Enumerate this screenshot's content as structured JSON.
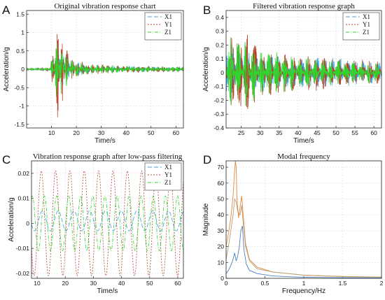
{
  "chart_data": [
    {
      "panel_label": "A",
      "type": "line",
      "title": "Original vibration response chart",
      "xlabel": "Time/s",
      "ylabel": "Acceleration/g",
      "xlim": [
        0,
        63
      ],
      "ylim": [
        -1.6,
        1.6
      ],
      "xticks": [
        10,
        20,
        30,
        40,
        50,
        60
      ],
      "yticks": [
        -1.5,
        -1,
        -0.5,
        0,
        0.5,
        1,
        1.5
      ],
      "ytick_labels": [
        "-1.5",
        "-1",
        "-0.5",
        "0",
        "0.5",
        "1",
        "1.5"
      ],
      "grid": true,
      "legend_position": "top-right",
      "series": [
        {
          "name": "X1",
          "color": "#3aa0dd",
          "dash": "6,3",
          "peak_envelope": [
            [
              0,
              0.03
            ],
            [
              9,
              0.05
            ],
            [
              11,
              0.35
            ],
            [
              12.5,
              0.7
            ],
            [
              14,
              0.5
            ],
            [
              17,
              0.25
            ],
            [
              25,
              0.12
            ],
            [
              40,
              0.08
            ],
            [
              63,
              0.06
            ]
          ]
        },
        {
          "name": "Y1",
          "color": "#b5442a",
          "dash": "2,2",
          "peak_envelope": [
            [
              0,
              0.03
            ],
            [
              9,
              0.05
            ],
            [
              11,
              0.6
            ],
            [
              12.5,
              1.5
            ],
            [
              14,
              1.2
            ],
            [
              17,
              0.35
            ],
            [
              25,
              0.15
            ],
            [
              40,
              0.1
            ],
            [
              63,
              0.07
            ]
          ]
        },
        {
          "name": "Z1",
          "color": "#2fd62f",
          "dash": "5,2,1,2",
          "peak_envelope": [
            [
              0,
              0.03
            ],
            [
              9,
              0.05
            ],
            [
              11,
              0.5
            ],
            [
              12.5,
              1.0
            ],
            [
              14,
              0.8
            ],
            [
              17,
              0.3
            ],
            [
              25,
              0.14
            ],
            [
              40,
              0.09
            ],
            [
              63,
              0.07
            ]
          ]
        }
      ]
    },
    {
      "panel_label": "B",
      "type": "line",
      "title": "Filtered vibration response graph",
      "xlabel": "Time/s",
      "ylabel": "Acceleration/g",
      "xlim": [
        21,
        62
      ],
      "ylim": [
        -0.4,
        0.45
      ],
      "xticks": [
        25,
        30,
        35,
        40,
        45,
        50,
        55,
        60
      ],
      "yticks": [
        -0.4,
        -0.3,
        -0.2,
        -0.1,
        0,
        0.1,
        0.2,
        0.3,
        0.4
      ],
      "ytick_labels": [
        "-0.4",
        "-0.3",
        "-0.2",
        "-0.1",
        "0",
        "0.1",
        "0.2",
        "0.3",
        "0.4"
      ],
      "grid": true,
      "legend_position": "top-right",
      "series": [
        {
          "name": "X1",
          "color": "#3aa0dd",
          "dash": "6,3",
          "peak_envelope": [
            [
              21,
              0.2
            ],
            [
              25,
              0.18
            ],
            [
              30,
              0.14
            ],
            [
              40,
              0.12
            ],
            [
              50,
              0.11
            ],
            [
              62,
              0.08
            ]
          ]
        },
        {
          "name": "Y1",
          "color": "#b5442a",
          "dash": "2,2",
          "peak_envelope": [
            [
              21,
              0.25
            ],
            [
              24,
              0.35
            ],
            [
              26,
              0.32
            ],
            [
              30,
              0.2
            ],
            [
              40,
              0.14
            ],
            [
              50,
              0.12
            ],
            [
              62,
              0.08
            ]
          ]
        },
        {
          "name": "Z1",
          "color": "#2fd62f",
          "dash": "5,2,1,2",
          "peak_envelope": [
            [
              21,
              0.28
            ],
            [
              23,
              0.3
            ],
            [
              26,
              0.25
            ],
            [
              30,
              0.18
            ],
            [
              40,
              0.12
            ],
            [
              50,
              0.1
            ],
            [
              62,
              0.07
            ]
          ]
        }
      ]
    },
    {
      "panel_label": "C",
      "type": "line",
      "title": "Vibration response graph after low-pass filtering",
      "xlabel": "Time/s",
      "ylabel": "Acceleration/g",
      "xlim": [
        8,
        62
      ],
      "ylim": [
        -0.022,
        0.025
      ],
      "xticks": [
        10,
        20,
        30,
        40,
        50,
        60
      ],
      "yticks": [
        -0.02,
        -0.01,
        0,
        0.01,
        0.02
      ],
      "ytick_labels": [
        "-0.02",
        "-0.01",
        "0",
        "0.01",
        "0.02"
      ],
      "grid": true,
      "legend_position": "top-right",
      "series": [
        {
          "name": "X1",
          "color": "#3aa0dd",
          "dash": "6,3",
          "amplitude": 0.004,
          "offset": 0.001,
          "period": 5.6,
          "phase": 0.8
        },
        {
          "name": "Y1",
          "color": "#b5442a",
          "dash": "2,2",
          "amplitude": 0.021,
          "offset": 0.0,
          "period": 5.1,
          "phase": 0.0
        },
        {
          "name": "Z1",
          "color": "#2fd62f",
          "dash": "5,2,1,2",
          "amplitude": 0.011,
          "offset": 0.0,
          "period": 4.3,
          "phase": 2.0
        }
      ]
    },
    {
      "panel_label": "D",
      "type": "line",
      "title": "Modal frequency",
      "xlabel": "Frequency/Hz",
      "ylabel": "Magnitude",
      "xlim": [
        0,
        2
      ],
      "ylim": [
        0,
        74
      ],
      "xticks": [
        0,
        0.5,
        1,
        1.5,
        2
      ],
      "xtick_labels": [
        "0",
        "0.5",
        "1",
        "1.5",
        "2"
      ],
      "yticks": [
        0,
        10,
        20,
        30,
        40,
        50,
        60,
        70
      ],
      "ytick_labels": [
        "0",
        "10",
        "20",
        "30",
        "40",
        "50",
        "60",
        "70"
      ],
      "grid": true,
      "series": [
        {
          "color": "#4a7fc1",
          "x": [
            0,
            0.03,
            0.06,
            0.09,
            0.11,
            0.13,
            0.15,
            0.17,
            0.19,
            0.21,
            0.23,
            0.26,
            0.3,
            0.4,
            0.6,
            0.8,
            1.0,
            1.5,
            2.0
          ],
          "y": [
            3,
            5,
            8,
            12,
            16,
            11,
            14,
            20,
            30,
            33,
            18,
            9,
            5,
            3,
            1.5,
            1,
            0.7,
            0.4,
            0.3
          ]
        },
        {
          "color": "#e08a3c",
          "x": [
            0,
            0.03,
            0.06,
            0.09,
            0.11,
            0.12,
            0.13,
            0.14,
            0.16,
            0.18,
            0.2,
            0.22,
            0.25,
            0.3,
            0.4,
            0.6,
            0.8,
            1.0,
            1.5,
            2.0
          ],
          "y": [
            20,
            28,
            38,
            52,
            68,
            74,
            70,
            50,
            38,
            45,
            52,
            40,
            22,
            12,
            7,
            4,
            3,
            2,
            1.2,
            0.8
          ]
        },
        {
          "color": "#b7a07a",
          "x": [
            0,
            0.03,
            0.06,
            0.09,
            0.11,
            0.13,
            0.15,
            0.18,
            0.2,
            0.22,
            0.25,
            0.3,
            0.4,
            0.6,
            0.8,
            1.0,
            1.5,
            2.0
          ],
          "y": [
            12,
            20,
            30,
            40,
            50,
            48,
            42,
            40,
            46,
            35,
            20,
            11,
            6,
            4,
            3,
            2,
            1,
            0.7
          ]
        }
      ]
    }
  ]
}
